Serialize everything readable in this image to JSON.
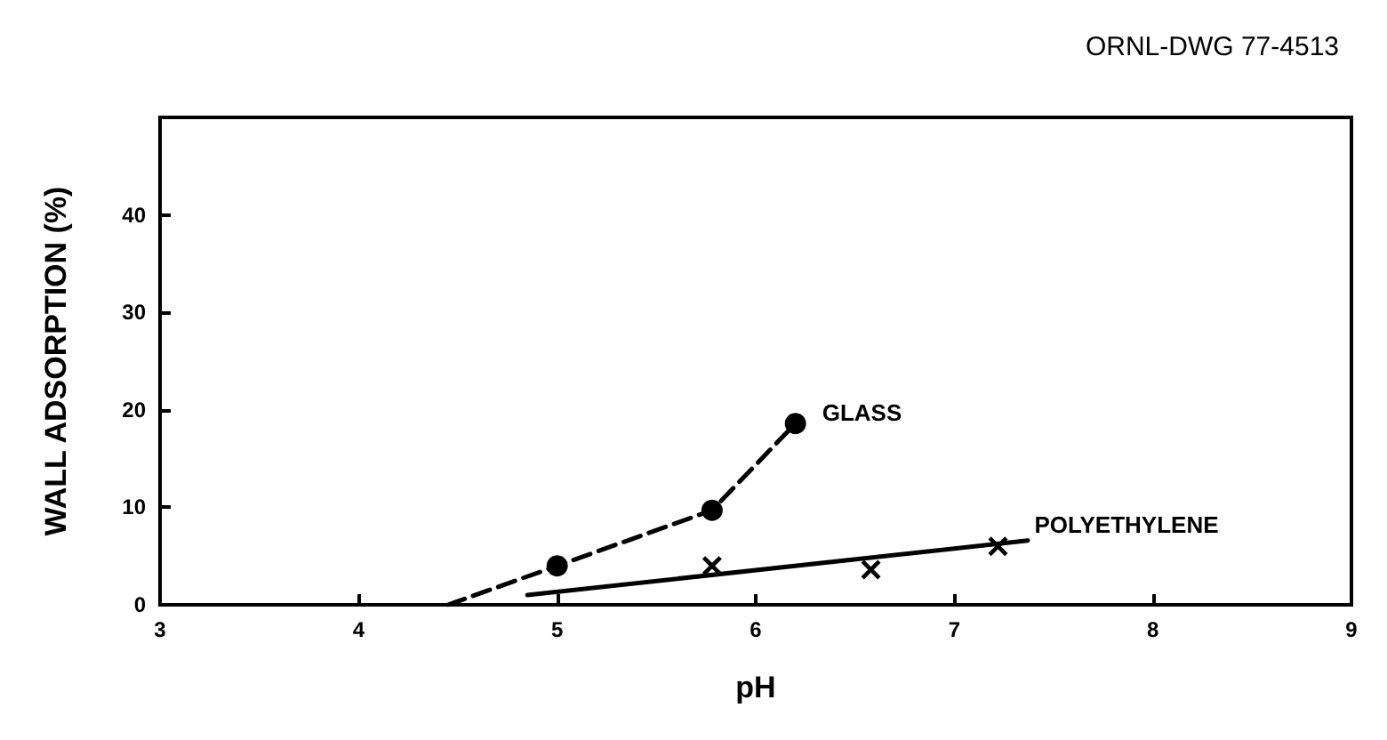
{
  "chart_data": {
    "type": "scatter",
    "xlabel": "pH",
    "ylabel": "WALL ADSORPTION (%)",
    "annotations": [
      "ORNL-DWG 77-4513"
    ],
    "xlim": [
      3,
      9
    ],
    "xticks": [
      3,
      4,
      5,
      6,
      7,
      8,
      9
    ],
    "ylim": [
      0,
      50
    ],
    "yticks": [
      0,
      10,
      20,
      30,
      40
    ],
    "grid": false,
    "legend": false,
    "series": [
      {
        "type": "line",
        "color": "#000000",
        "line_style": "dashed",
        "marker": "none",
        "x": [
          4.45,
          5,
          5.78,
          6.2
        ],
        "values": [
          0,
          4,
          9.7,
          18.6
        ]
      },
      {
        "name": "GLASS",
        "color": "#000000",
        "marker": "circle",
        "x": [
          5,
          5.78,
          6.2
        ],
        "values": [
          4,
          9.7,
          18.6
        ]
      },
      {
        "type": "line",
        "color": "#000000",
        "line_style": "solid",
        "marker": "none",
        "x": [
          4.85,
          7.37
        ],
        "values": [
          1,
          6.6
        ]
      },
      {
        "name": "POLYETHYLENE",
        "color": "#000000",
        "marker": "cross",
        "x": [
          5.78,
          6.58,
          7.22
        ],
        "values": [
          4,
          3.6,
          6
        ]
      }
    ]
  }
}
